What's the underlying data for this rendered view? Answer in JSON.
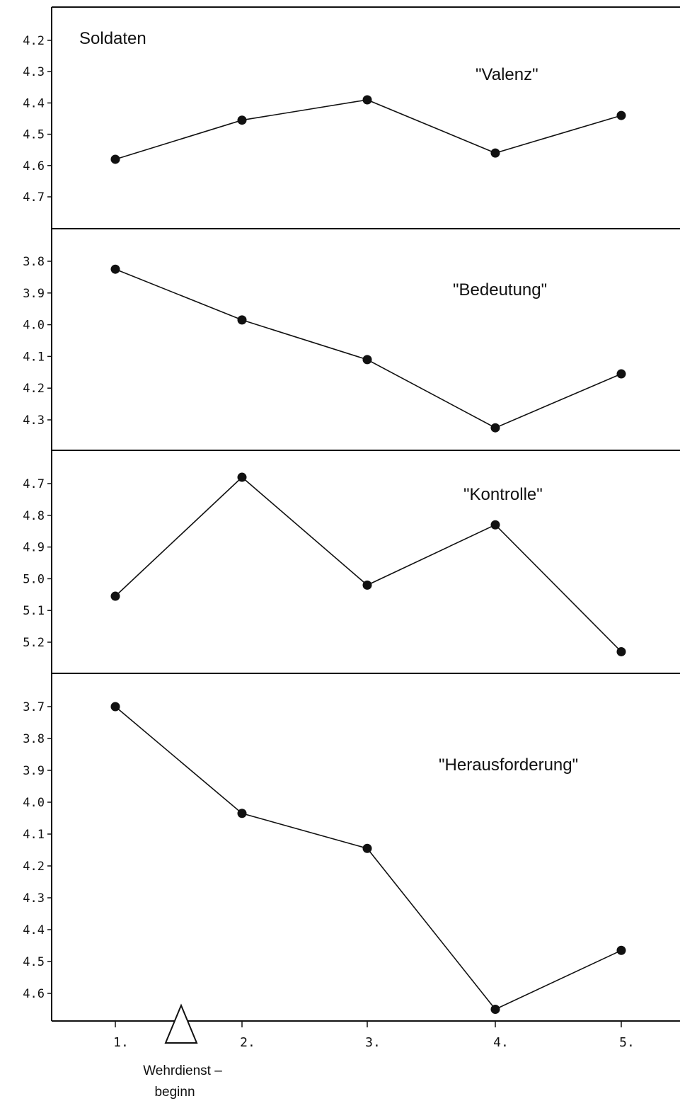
{
  "chart_data": {
    "type": "line",
    "group_label": "Soldaten",
    "x": [
      "1.",
      "2.",
      "3.",
      "4.",
      "5."
    ],
    "annotation": {
      "label_line1": "Wehrdienst –",
      "label_line2": "beginn"
    },
    "panels": [
      {
        "title": "\"Valenz\"",
        "y_ticks": [
          "4.2",
          "4.3",
          "4.4",
          "4.5",
          "4.6",
          "4.7"
        ],
        "ylim": [
          4.2,
          4.7
        ],
        "inverted": true,
        "values": [
          4.58,
          4.455,
          4.39,
          4.56,
          4.44
        ]
      },
      {
        "title": "\"Bedeutung\"",
        "y_ticks": [
          "3.8",
          "3.9",
          "4.0",
          "4.1",
          "4.2",
          "4.3"
        ],
        "ylim": [
          3.8,
          4.3
        ],
        "inverted": true,
        "values": [
          3.825,
          3.985,
          4.11,
          4.325,
          4.155
        ]
      },
      {
        "title": "\"Kontrolle\"",
        "y_ticks": [
          "4.7",
          "4.8",
          "4.9",
          "5.0",
          "5.1",
          "5.2"
        ],
        "ylim": [
          4.7,
          5.2
        ],
        "inverted": true,
        "values": [
          5.055,
          4.68,
          5.02,
          4.83,
          5.23
        ]
      },
      {
        "title": "\"Herausforderung\"",
        "y_ticks": [
          "3.7",
          "3.8",
          "3.9",
          "4.0",
          "4.1",
          "4.2",
          "4.3",
          "4.4",
          "4.5",
          "4.6"
        ],
        "ylim": [
          3.7,
          4.6
        ],
        "inverted": true,
        "values": [
          3.7,
          4.035,
          4.145,
          4.65,
          4.465
        ]
      }
    ]
  }
}
